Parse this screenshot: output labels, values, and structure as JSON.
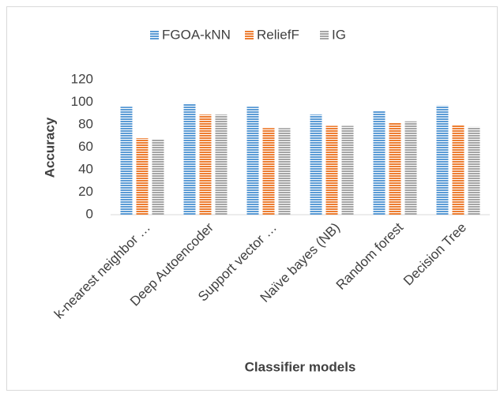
{
  "chart_data": {
    "type": "bar",
    "categories": [
      "k-nearest neighbor …",
      "Deep Autoencoder",
      "Support vector …",
      "Naïve bayes (NB)",
      "Random forest",
      "Decision Tree"
    ],
    "series": [
      {
        "name": "FGOA-kNN",
        "color": "#5b9bd5",
        "values": [
          96,
          99,
          96,
          89,
          92,
          97
        ]
      },
      {
        "name": "ReliefF",
        "color": "#ed7d31",
        "values": [
          68,
          89,
          77,
          79,
          82,
          80
        ]
      },
      {
        "name": "IG",
        "color": "#a5a5a5",
        "values": [
          67,
          89,
          77,
          79,
          83,
          78
        ]
      }
    ],
    "ylim": [
      0,
      120
    ],
    "yticks": [
      0,
      20,
      40,
      60,
      80,
      100,
      120
    ],
    "y_label": "Accuracy",
    "x_label": "Classifier models",
    "grid": false,
    "legend": "top"
  }
}
